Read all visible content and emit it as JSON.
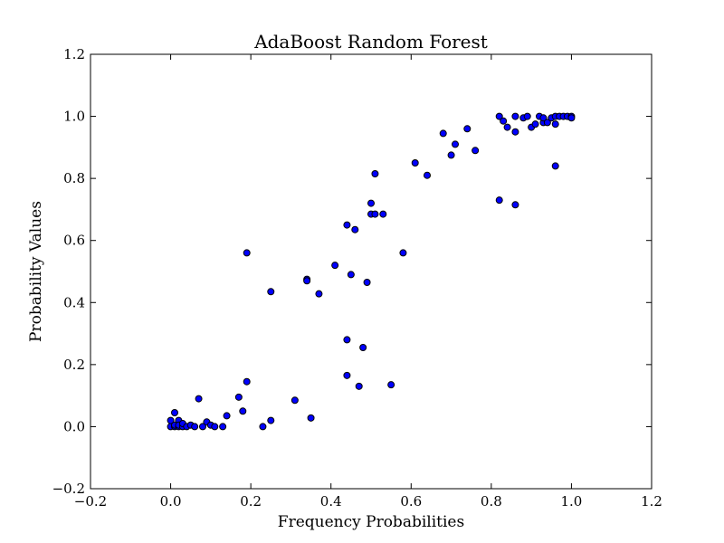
{
  "chart_data": {
    "type": "scatter",
    "title": "AdaBoost Random Forest",
    "xlabel": "Frequency Probabilities",
    "ylabel": "Probability Values",
    "xlim": [
      -0.2,
      1.2
    ],
    "ylim": [
      -0.2,
      1.2
    ],
    "xticks": [
      -0.2,
      0.0,
      0.2,
      0.4,
      0.6,
      0.8,
      1.0,
      1.2
    ],
    "yticks": [
      -0.2,
      0.0,
      0.2,
      0.4,
      0.6,
      0.8,
      1.0,
      1.2
    ],
    "xtick_labels": [
      "−0.2",
      "0.0",
      "0.2",
      "0.4",
      "0.6",
      "0.8",
      "1.0",
      "1.2"
    ],
    "ytick_labels": [
      "−0.2",
      "0.0",
      "0.2",
      "0.4",
      "0.6",
      "0.8",
      "1.0",
      "1.2"
    ],
    "grid": false,
    "marker_color": "#0000ff",
    "marker_edge_color": "#000000",
    "points": [
      [
        0.0,
        0.0
      ],
      [
        0.0,
        0.02
      ],
      [
        0.01,
        0.0
      ],
      [
        0.01,
        0.045
      ],
      [
        0.01,
        0.005
      ],
      [
        0.02,
        0.0
      ],
      [
        0.02,
        0.02
      ],
      [
        0.02,
        0.005
      ],
      [
        0.03,
        0.0
      ],
      [
        0.03,
        0.01
      ],
      [
        0.04,
        0.0
      ],
      [
        0.05,
        0.005
      ],
      [
        0.06,
        0.0
      ],
      [
        0.07,
        0.09
      ],
      [
        0.08,
        0.0
      ],
      [
        0.09,
        0.015
      ],
      [
        0.1,
        0.005
      ],
      [
        0.11,
        0.0
      ],
      [
        0.13,
        0.0
      ],
      [
        0.14,
        0.035
      ],
      [
        0.17,
        0.095
      ],
      [
        0.18,
        0.05
      ],
      [
        0.19,
        0.145
      ],
      [
        0.19,
        0.56
      ],
      [
        0.23,
        0.0
      ],
      [
        0.25,
        0.02
      ],
      [
        0.25,
        0.435
      ],
      [
        0.31,
        0.085
      ],
      [
        0.34,
        0.475
      ],
      [
        0.34,
        0.47
      ],
      [
        0.35,
        0.028
      ],
      [
        0.37,
        0.428
      ],
      [
        0.41,
        0.52
      ],
      [
        0.44,
        0.28
      ],
      [
        0.44,
        0.165
      ],
      [
        0.44,
        0.65
      ],
      [
        0.45,
        0.49
      ],
      [
        0.46,
        0.635
      ],
      [
        0.47,
        0.13
      ],
      [
        0.48,
        0.255
      ],
      [
        0.49,
        0.465
      ],
      [
        0.5,
        0.72
      ],
      [
        0.5,
        0.685
      ],
      [
        0.51,
        0.685
      ],
      [
        0.51,
        0.815
      ],
      [
        0.53,
        0.685
      ],
      [
        0.55,
        0.135
      ],
      [
        0.58,
        0.56
      ],
      [
        0.61,
        0.85
      ],
      [
        0.64,
        0.81
      ],
      [
        0.68,
        0.945
      ],
      [
        0.7,
        0.875
      ],
      [
        0.71,
        0.91
      ],
      [
        0.74,
        0.96
      ],
      [
        0.76,
        0.89
      ],
      [
        0.82,
        1.0
      ],
      [
        0.82,
        0.73
      ],
      [
        0.83,
        0.985
      ],
      [
        0.84,
        0.965
      ],
      [
        0.86,
        1.0
      ],
      [
        0.86,
        0.95
      ],
      [
        0.86,
        0.715
      ],
      [
        0.88,
        0.995
      ],
      [
        0.89,
        1.0
      ],
      [
        0.9,
        0.965
      ],
      [
        0.91,
        0.975
      ],
      [
        0.92,
        1.0
      ],
      [
        0.93,
        0.98
      ],
      [
        0.93,
        0.995
      ],
      [
        0.94,
        0.98
      ],
      [
        0.95,
        0.995
      ],
      [
        0.96,
        1.0
      ],
      [
        0.96,
        0.975
      ],
      [
        0.96,
        0.84
      ],
      [
        0.97,
        1.0
      ],
      [
        0.98,
        1.0
      ],
      [
        0.99,
        1.0
      ],
      [
        1.0,
        1.0
      ],
      [
        1.0,
        0.995
      ]
    ]
  }
}
